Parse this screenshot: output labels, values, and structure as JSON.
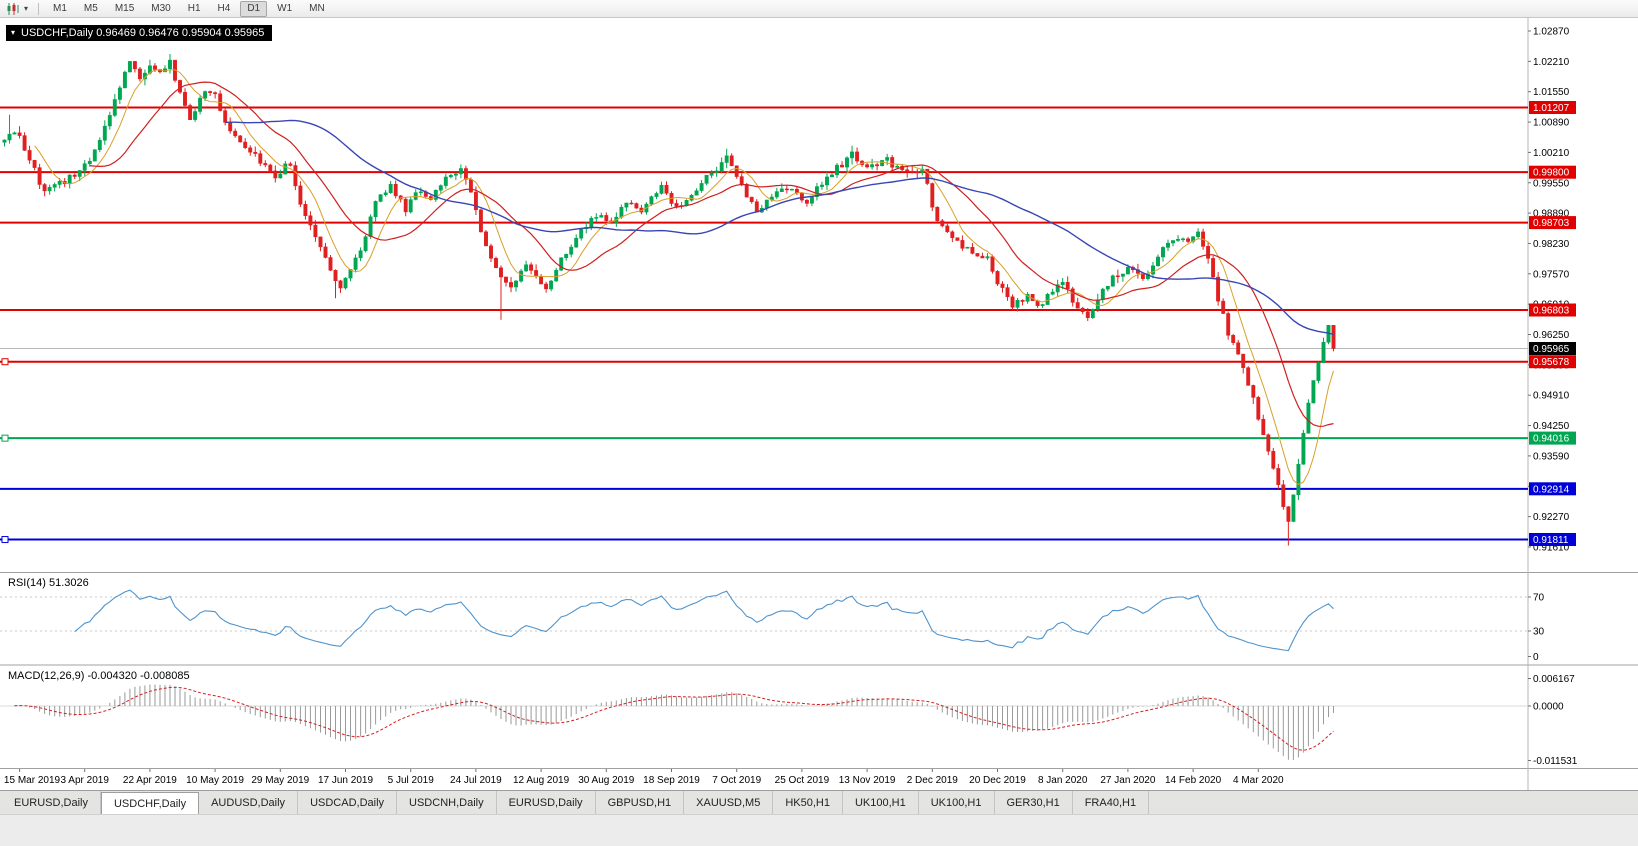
{
  "toolbar": {
    "timeframes": [
      "M1",
      "M5",
      "M15",
      "M30",
      "H1",
      "H4",
      "D1",
      "W1",
      "MN"
    ],
    "active": "D1"
  },
  "chart_header": {
    "text": "USDCHF,Daily 0.96469 0.96476 0.95904 0.95965",
    "symbol": "USDCHF,Daily",
    "open": "0.96469",
    "high": "0.96476",
    "low": "0.95904",
    "close": "0.95965"
  },
  "indicators": {
    "rsi": {
      "label": "RSI(14) 51.3026",
      "name": "RSI(14)",
      "value": "51.3026",
      "period": 14,
      "levels": [
        70,
        30
      ],
      "axis_labels": [
        "70",
        "30",
        "0"
      ],
      "color": "#4f94cd"
    },
    "macd": {
      "label": "MACD(12,26,9) -0.004320 -0.008085",
      "name": "MACD(12,26,9)",
      "main_value": "-0.004320",
      "signal_value": "-0.008085",
      "fast": 12,
      "slow": 26,
      "signal": 9,
      "axis_labels": [
        "0.006167",
        "0.0000",
        "-0.011531"
      ],
      "histogram_color": "#9a9a9a",
      "signal_color": "#d42020"
    }
  },
  "chart_data": {
    "type": "candlestick",
    "symbol": "USDCHF",
    "period": "Daily",
    "bars": 266,
    "up_color": "#00a651",
    "down_color": "#e02020",
    "price_axis": {
      "top": 1.0287,
      "step": 0.0066,
      "labels": [
        "1.02870",
        "1.02210",
        "1.01550",
        "1.00890",
        "1.00210",
        "0.99550",
        "0.98890",
        "0.98230",
        "0.97570",
        "0.96910",
        "0.96250",
        "0.95590",
        "0.94910",
        "0.94250",
        "0.93590",
        "0.92930",
        "0.92270",
        "0.91610"
      ]
    },
    "levels": [
      {
        "price": 1.01207,
        "label": "1.01207",
        "color": "#e00000",
        "width": 2,
        "handle": false
      },
      {
        "price": 0.998,
        "label": "0.99800",
        "color": "#e00000",
        "width": 2,
        "handle": false
      },
      {
        "price": 0.98703,
        "label": "0.98703",
        "color": "#e00000",
        "width": 2,
        "handle": false
      },
      {
        "price": 0.96803,
        "label": "0.96803",
        "color": "#e00000",
        "width": 2,
        "handle": false
      },
      {
        "price": 0.95678,
        "label": "0.95678",
        "color": "#e00000",
        "width": 2,
        "handle": true
      },
      {
        "price": 0.94016,
        "label": "0.94016",
        "color": "#00a651",
        "width": 2,
        "handle": true
      },
      {
        "price": 0.92914,
        "label": "0.92914",
        "color": "#0000d8",
        "width": 2,
        "handle": false
      },
      {
        "price": 0.91811,
        "label": "0.91811",
        "color": "#0000d8",
        "width": 2,
        "handle": true
      }
    ],
    "current_price": {
      "value": 0.95965,
      "label": "0.95965",
      "tag_color": "#000000"
    },
    "x_labels": [
      {
        "text": "15 Mar 2019",
        "bar": 3
      },
      {
        "text": "3 Apr 2019",
        "bar": 16
      },
      {
        "text": "22 Apr 2019",
        "bar": 29
      },
      {
        "text": "10 May 2019",
        "bar": 42
      },
      {
        "text": "29 May 2019",
        "bar": 55
      },
      {
        "text": "17 Jun 2019",
        "bar": 68
      },
      {
        "text": "5 Jul 2019",
        "bar": 81
      },
      {
        "text": "24 Jul 2019",
        "bar": 94
      },
      {
        "text": "12 Aug 2019",
        "bar": 107
      },
      {
        "text": "30 Aug 2019",
        "bar": 120
      },
      {
        "text": "18 Sep 2019",
        "bar": 133
      },
      {
        "text": "7 Oct 2019",
        "bar": 146
      },
      {
        "text": "25 Oct 2019",
        "bar": 159
      },
      {
        "text": "13 Nov 2019",
        "bar": 172
      },
      {
        "text": "2 Dec 2019",
        "bar": 185
      },
      {
        "text": "20 Dec 2019",
        "bar": 198
      },
      {
        "text": "8 Jan 2020",
        "bar": 211
      },
      {
        "text": "27 Jan 2020",
        "bar": 224
      },
      {
        "text": "14 Feb 2020",
        "bar": 237
      },
      {
        "text": "4 Mar 2020",
        "bar": 250
      }
    ],
    "price_anchors": [
      [
        0,
        1.0045
      ],
      [
        2,
        1.007
      ],
      [
        5,
        1.001
      ],
      [
        8,
        0.9935
      ],
      [
        12,
        0.9962
      ],
      [
        16,
        0.999
      ],
      [
        19,
        1.0045
      ],
      [
        22,
        1.014
      ],
      [
        25,
        1.022
      ],
      [
        27,
        1.0185
      ],
      [
        29,
        1.0215
      ],
      [
        31,
        1.0195
      ],
      [
        33,
        1.0222
      ],
      [
        35,
        1.015
      ],
      [
        37,
        1.0095
      ],
      [
        40,
        1.0158
      ],
      [
        42,
        1.015
      ],
      [
        44,
        1.0085
      ],
      [
        47,
        1.0042
      ],
      [
        50,
        1.0012
      ],
      [
        54,
        0.9972
      ],
      [
        57,
        0.9998
      ],
      [
        59,
        0.9905
      ],
      [
        62,
        0.9845
      ],
      [
        65,
        0.9762
      ],
      [
        67,
        0.9732
      ],
      [
        69,
        0.9775
      ],
      [
        71,
        0.9808
      ],
      [
        74,
        0.9915
      ],
      [
        77,
        0.9948
      ],
      [
        80,
        0.9902
      ],
      [
        82,
        0.9938
      ],
      [
        85,
        0.9922
      ],
      [
        88,
        0.9972
      ],
      [
        91,
        0.9985
      ],
      [
        93,
        0.9938
      ],
      [
        95,
        0.9855
      ],
      [
        98,
        0.9765
      ],
      [
        101,
        0.9732
      ],
      [
        104,
        0.9778
      ],
      [
        106,
        0.9758
      ],
      [
        108,
        0.9722
      ],
      [
        111,
        0.9788
      ],
      [
        114,
        0.9838
      ],
      [
        118,
        0.9888
      ],
      [
        121,
        0.9868
      ],
      [
        124,
        0.9915
      ],
      [
        127,
        0.9898
      ],
      [
        131,
        0.9948
      ],
      [
        134,
        0.9902
      ],
      [
        137,
        0.9932
      ],
      [
        140,
        0.9968
      ],
      [
        144,
        1.0008
      ],
      [
        147,
        0.9952
      ],
      [
        150,
        0.9892
      ],
      [
        153,
        0.993
      ],
      [
        157,
        0.9948
      ],
      [
        160,
        0.9918
      ],
      [
        163,
        0.9958
      ],
      [
        166,
        0.9988
      ],
      [
        169,
        1.0018
      ],
      [
        172,
        0.9992
      ],
      [
        176,
        1.0005
      ],
      [
        180,
        0.9978
      ],
      [
        183,
        0.9992
      ],
      [
        186,
        0.9872
      ],
      [
        189,
        0.9842
      ],
      [
        192,
        0.9812
      ],
      [
        196,
        0.9792
      ],
      [
        198,
        0.9738
      ],
      [
        201,
        0.9692
      ],
      [
        204,
        0.9712
      ],
      [
        207,
        0.9688
      ],
      [
        208,
        0.9715
      ],
      [
        211,
        0.9745
      ],
      [
        213,
        0.9702
      ],
      [
        216,
        0.9668
      ],
      [
        219,
        0.9722
      ],
      [
        221,
        0.9748
      ],
      [
        224,
        0.9775
      ],
      [
        227,
        0.9748
      ],
      [
        230,
        0.98
      ],
      [
        234,
        0.984
      ],
      [
        236,
        0.9828
      ],
      [
        238,
        0.9846
      ],
      [
        240,
        0.9795
      ],
      [
        242,
        0.9705
      ],
      [
        244,
        0.9632
      ],
      [
        247,
        0.9558
      ],
      [
        249,
        0.9482
      ],
      [
        251,
        0.9412
      ],
      [
        253,
        0.934
      ],
      [
        255,
        0.9255
      ],
      [
        256,
        0.9215
      ],
      [
        258,
        0.9345
      ],
      [
        260,
        0.9485
      ],
      [
        262,
        0.957
      ],
      [
        263,
        0.961
      ],
      [
        264,
        0.9647
      ],
      [
        265,
        0.95965
      ]
    ],
    "wick_spikes": [
      {
        "bar": 1,
        "high": 1.0105
      },
      {
        "bar": 33,
        "high": 1.0237
      },
      {
        "bar": 66,
        "low": 0.9706
      },
      {
        "bar": 99,
        "low": 0.9659
      },
      {
        "bar": 144,
        "high": 1.0031
      },
      {
        "bar": 169,
        "high": 1.0033
      },
      {
        "bar": 256,
        "low": 0.9168
      }
    ],
    "last_bar": {
      "open": 0.96469,
      "high": 0.96476,
      "low": 0.95904,
      "close": 0.95965
    },
    "moving_averages": [
      {
        "period": 7,
        "color": "#d8a028",
        "width": 1
      },
      {
        "period": 18,
        "color": "#d02020",
        "width": 1.2
      },
      {
        "period": 45,
        "color": "#3846b4",
        "width": 1.4
      }
    ]
  },
  "tabs": {
    "items": [
      "EURUSD,Daily",
      "USDCHF,Daily",
      "AUDUSD,Daily",
      "USDCAD,Daily",
      "USDCNH,Daily",
      "EURUSD,Daily",
      "GBPUSD,H1",
      "XAUUSD,M5",
      "HK50,H1",
      "UK100,H1",
      "UK100,H1",
      "GER30,H1",
      "FRA40,H1"
    ],
    "active_index": 1
  }
}
